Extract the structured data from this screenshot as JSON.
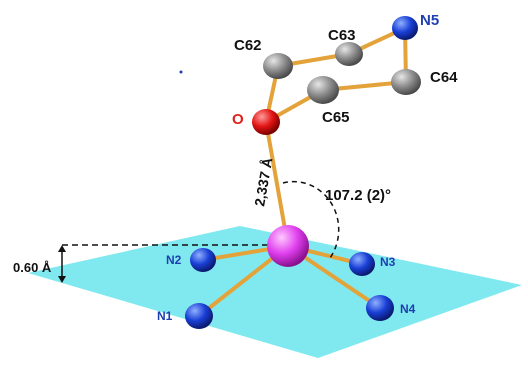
{
  "labels": {
    "c62": "C62",
    "c63": "C63",
    "c64": "C64",
    "c65": "C65",
    "n5": "N5",
    "o": "O",
    "n1": "N1",
    "n2": "N2",
    "n3": "N3",
    "n4": "N4"
  },
  "measurements": {
    "bond_length": "2,337 Å",
    "angle": "107.2 (2)°",
    "offset": "0.60 Å"
  },
  "colors": {
    "plane": "#7fe9ef",
    "carbon": "#8c8c8c",
    "nitrogen": "#1a3fd6",
    "oxygen": "#e21414",
    "metal": "#e040ee",
    "bond": "#e3a33a",
    "label_blue": "#1f3fb0",
    "label_red": "#e0201c"
  }
}
